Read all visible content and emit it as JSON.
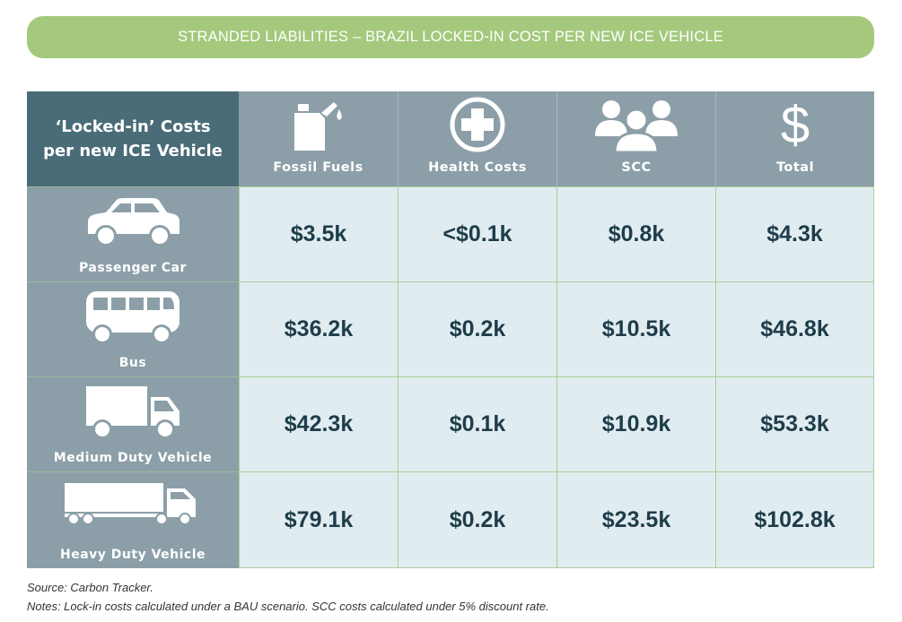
{
  "title": "STRANDED LIABILITIES – BRAZIL LOCKED-IN COST PER NEW ICE VEHICLE",
  "table": {
    "corner_line1": "‘Locked-in’ Costs",
    "corner_line2": "per new ICE Vehicle",
    "columns": [
      {
        "label": "Fossil Fuels",
        "icon": "fuel-can-icon"
      },
      {
        "label": "Health Costs",
        "icon": "medical-cross-icon"
      },
      {
        "label": "SCC",
        "icon": "people-group-icon"
      },
      {
        "label": "Total",
        "icon": "dollar-icon",
        "symbol": "$"
      }
    ],
    "rows": [
      {
        "label": "Passenger Car",
        "icon": "car-icon",
        "values": [
          "$3.5k",
          "<$0.1k",
          "$0.8k",
          "$4.3k"
        ]
      },
      {
        "label": "Bus",
        "icon": "bus-icon",
        "values": [
          "$36.2k",
          "$0.2k",
          "$10.5k",
          "$46.8k"
        ]
      },
      {
        "label": "Medium Duty Vehicle",
        "icon": "truck-icon",
        "values": [
          "$42.3k",
          "$0.1k",
          "$10.9k",
          "$53.3k"
        ]
      },
      {
        "label": "Heavy Duty Vehicle",
        "icon": "lorry-icon",
        "values": [
          "$79.1k",
          "$0.2k",
          "$23.5k",
          "$102.8k"
        ]
      }
    ]
  },
  "source": "Source: Carbon Tracker.",
  "notes": "Notes: Lock-in costs calculated under a BAU scenario. SCC costs calculated under 5% discount rate.",
  "colors": {
    "banner": "#a4c97d",
    "header_dark": "#4a6b78",
    "header_mid": "#8c9fa8",
    "cell_bg": "#e1ecf1",
    "cell_text": "#1e3d4a",
    "grid_line": "#a9cf95"
  }
}
